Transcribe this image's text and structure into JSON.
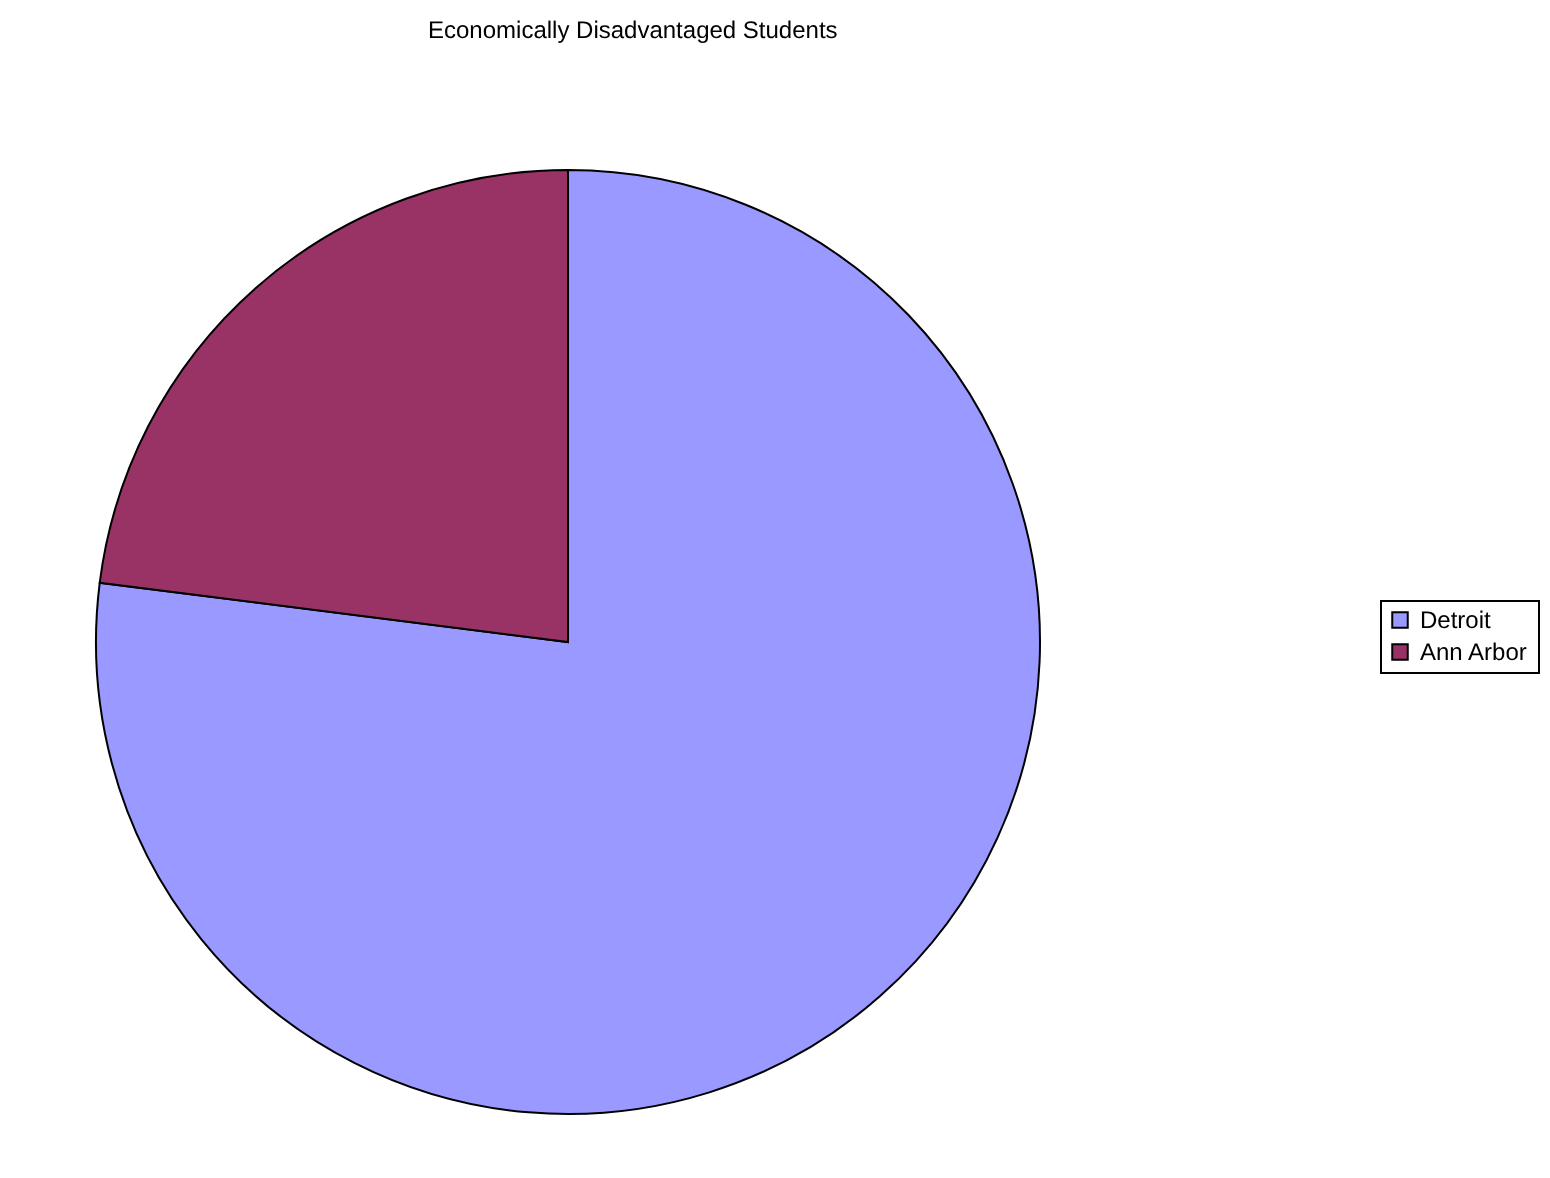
{
  "chart_data": {
    "type": "pie",
    "title": "Economically Disadvantaged Students",
    "categories": [
      "Detroit",
      "Ann Arbor"
    ],
    "values": [
      77,
      23
    ],
    "colors": [
      "#9999ff",
      "#993366"
    ],
    "legend": "right"
  }
}
